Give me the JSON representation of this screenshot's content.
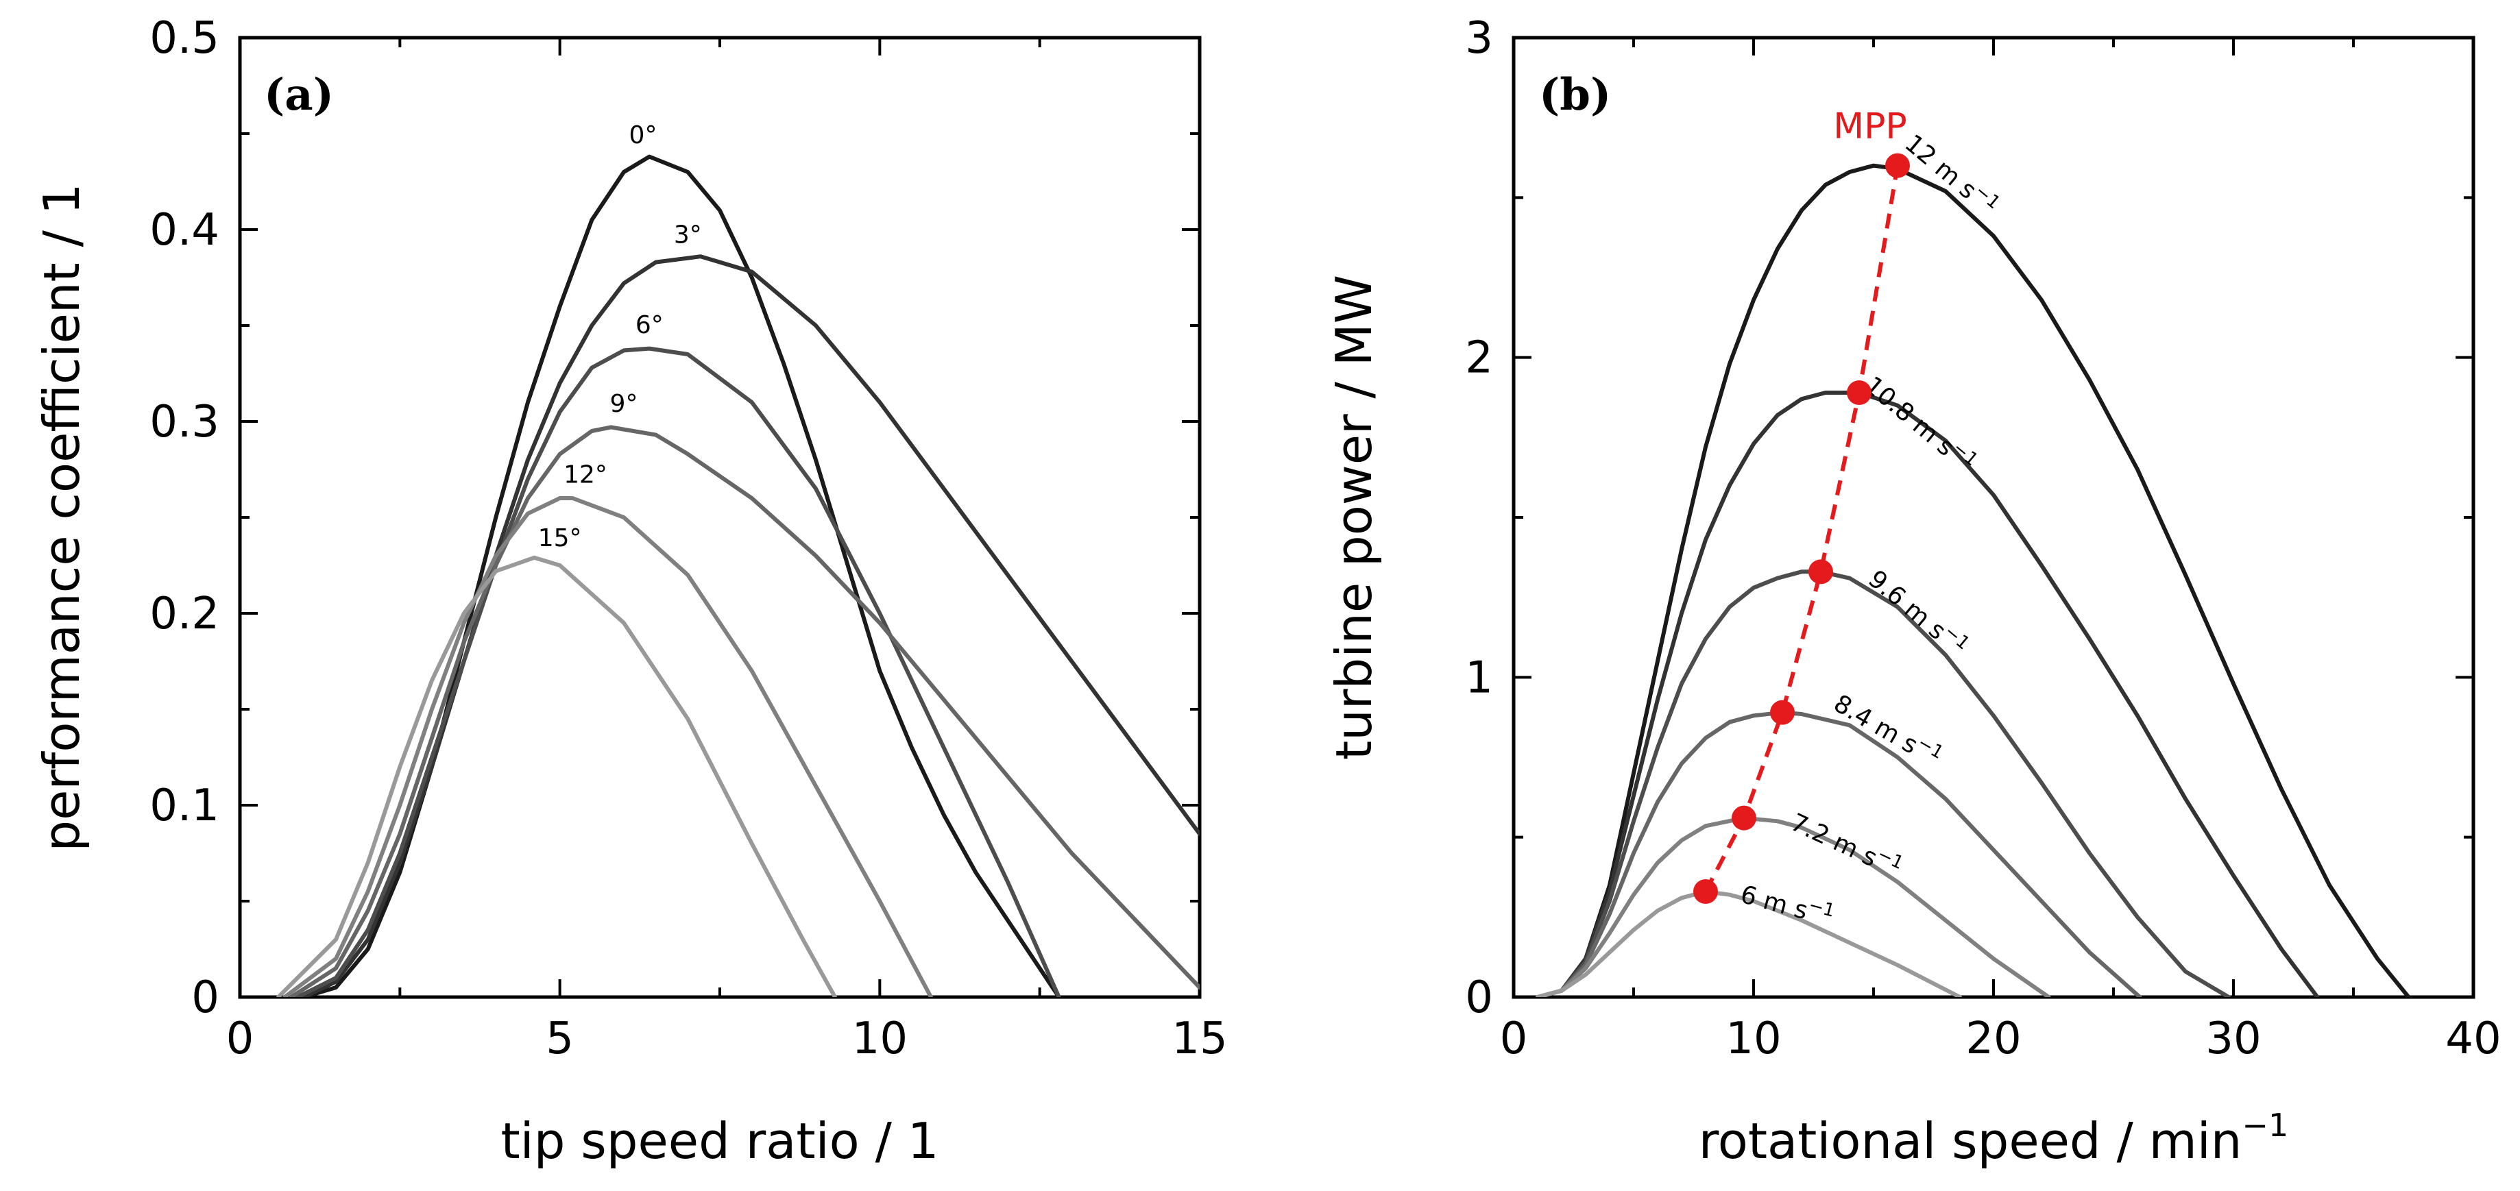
{
  "chart_data": [
    {
      "type": "line",
      "panel": "(a)",
      "xlabel": "tip speed ratio / 1",
      "ylabel": "performance coefficient / 1",
      "xlim": [
        0,
        15
      ],
      "ylim": [
        0,
        0.5
      ],
      "xticks": [
        {
          "value": 0,
          "label": "0"
        },
        {
          "value": 5,
          "label": "5"
        },
        {
          "value": 10,
          "label": "10"
        },
        {
          "value": 15,
          "label": "15"
        }
      ],
      "yticks": [
        {
          "value": 0,
          "label": "0"
        },
        {
          "value": 0.1,
          "label": "0.1"
        },
        {
          "value": 0.2,
          "label": "0.2"
        },
        {
          "value": 0.3,
          "label": "0.3"
        },
        {
          "value": 0.4,
          "label": "0.4"
        },
        {
          "value": 0.5,
          "label": "0.5"
        }
      ],
      "series": [
        {
          "name": "0°",
          "label": "0°",
          "color": "#1a1a1a",
          "x": [
            1.0,
            1.5,
            2.0,
            2.5,
            3.0,
            3.5,
            4.0,
            4.5,
            5.0,
            5.5,
            6.0,
            6.4,
            7.0,
            7.5,
            8.0,
            8.5,
            9.0,
            9.5,
            10.0,
            10.5,
            11.0,
            11.5,
            12.0,
            12.5,
            12.8
          ],
          "y": [
            0.0,
            0.005,
            0.025,
            0.065,
            0.12,
            0.185,
            0.25,
            0.31,
            0.36,
            0.405,
            0.43,
            0.438,
            0.43,
            0.41,
            0.375,
            0.33,
            0.28,
            0.225,
            0.17,
            0.13,
            0.095,
            0.065,
            0.04,
            0.015,
            0.0
          ],
          "label_at": [
            6.3,
            0.445
          ]
        },
        {
          "name": "3°",
          "label": "3°",
          "color": "#333333",
          "x": [
            1.0,
            1.5,
            2.0,
            2.5,
            3.0,
            3.5,
            4.0,
            4.5,
            5.0,
            5.5,
            6.0,
            6.5,
            7.2,
            8.0,
            9.0,
            10.0,
            11.0,
            12.0,
            13.0,
            14.0,
            15.0
          ],
          "y": [
            0.0,
            0.008,
            0.03,
            0.07,
            0.12,
            0.175,
            0.23,
            0.28,
            0.32,
            0.35,
            0.372,
            0.383,
            0.386,
            0.378,
            0.35,
            0.31,
            0.265,
            0.22,
            0.175,
            0.13,
            0.085
          ],
          "label_at": [
            7.0,
            0.393
          ]
        },
        {
          "name": "6°",
          "label": "6°",
          "color": "#4d4d4d",
          "x": [
            0.9,
            1.5,
            2.0,
            2.5,
            3.0,
            3.5,
            4.0,
            4.5,
            5.0,
            5.5,
            6.0,
            6.4,
            7.0,
            8.0,
            9.0,
            10.0,
            11.0,
            12.0,
            12.8
          ],
          "y": [
            0.0,
            0.01,
            0.035,
            0.075,
            0.125,
            0.175,
            0.225,
            0.27,
            0.305,
            0.328,
            0.337,
            0.338,
            0.335,
            0.31,
            0.265,
            0.2,
            0.13,
            0.06,
            0.0
          ],
          "label_at": [
            6.4,
            0.346
          ]
        },
        {
          "name": "9°",
          "label": "9°",
          "color": "#666666",
          "x": [
            0.8,
            1.5,
            2.0,
            2.5,
            3.0,
            3.5,
            4.0,
            4.5,
            5.0,
            5.5,
            5.8,
            6.5,
            7.0,
            8.0,
            9.0,
            10.0,
            11.0,
            12.0,
            13.0,
            14.0,
            15.0
          ],
          "y": [
            0.0,
            0.015,
            0.045,
            0.085,
            0.135,
            0.185,
            0.225,
            0.26,
            0.283,
            0.295,
            0.297,
            0.293,
            0.283,
            0.26,
            0.23,
            0.195,
            0.155,
            0.115,
            0.075,
            0.04,
            0.005
          ],
          "label_at": [
            6.0,
            0.305
          ]
        },
        {
          "name": "12°",
          "label": "12°",
          "color": "#808080",
          "x": [
            0.7,
            1.5,
            2.0,
            2.5,
            3.0,
            3.5,
            4.0,
            4.5,
            5.0,
            5.2,
            6.0,
            7.0,
            8.0,
            9.0,
            10.0,
            10.8
          ],
          "y": [
            0.0,
            0.02,
            0.055,
            0.1,
            0.15,
            0.195,
            0.23,
            0.252,
            0.26,
            0.26,
            0.25,
            0.22,
            0.17,
            0.11,
            0.05,
            0.0
          ],
          "label_at": [
            5.4,
            0.268
          ]
        },
        {
          "name": "15°",
          "label": "15°",
          "color": "#999999",
          "x": [
            0.6,
            1.5,
            2.0,
            2.5,
            3.0,
            3.5,
            4.0,
            4.6,
            5.0,
            6.0,
            7.0,
            8.0,
            8.8,
            9.3
          ],
          "y": [
            0.0,
            0.03,
            0.07,
            0.12,
            0.165,
            0.2,
            0.222,
            0.229,
            0.225,
            0.195,
            0.145,
            0.08,
            0.03,
            0.0
          ],
          "label_at": [
            5.0,
            0.235
          ]
        }
      ]
    },
    {
      "type": "line",
      "panel": "(b)",
      "xlabel": "rotational speed / min",
      "xlabel_sup": "−1",
      "ylabel": "turbine power / MW",
      "xlim": [
        0,
        40
      ],
      "ylim": [
        0,
        3
      ],
      "xticks": [
        {
          "value": 0,
          "label": "0"
        },
        {
          "value": 10,
          "label": "10"
        },
        {
          "value": 20,
          "label": "20"
        },
        {
          "value": 30,
          "label": "30"
        },
        {
          "value": 40,
          "label": "40"
        }
      ],
      "yticks": [
        {
          "value": 0,
          "label": "0"
        },
        {
          "value": 1,
          "label": "1"
        },
        {
          "value": 2,
          "label": "2"
        },
        {
          "value": 3,
          "label": "3"
        }
      ],
      "series": [
        {
          "name": "12 m s−1",
          "label": "12 m s",
          "label_sup": "−1",
          "color": "#1a1a1a",
          "x": [
            1.0,
            2.0,
            3.0,
            4.0,
            5.0,
            6.0,
            7.0,
            8.0,
            9.0,
            10.0,
            11.0,
            12.0,
            13.0,
            14.0,
            15.0,
            16.0,
            18.0,
            20.0,
            22.0,
            24.0,
            26.0,
            28.0,
            30.0,
            32.0,
            34.0,
            36.0,
            37.3
          ],
          "y": [
            0.0,
            0.02,
            0.12,
            0.35,
            0.7,
            1.05,
            1.4,
            1.72,
            1.98,
            2.18,
            2.34,
            2.46,
            2.54,
            2.58,
            2.6,
            2.59,
            2.52,
            2.38,
            2.18,
            1.93,
            1.65,
            1.32,
            0.98,
            0.65,
            0.35,
            0.12,
            0.0
          ],
          "label_at": [
            18.0,
            2.55
          ],
          "label_angle": 40
        },
        {
          "name": "10.8 m s−1",
          "label": "10.8 m s",
          "label_sup": "−1",
          "color": "#333333",
          "x": [
            1.0,
            2.0,
            3.0,
            4.0,
            5.0,
            6.0,
            7.0,
            8.0,
            9.0,
            10.0,
            11.0,
            12.0,
            13.0,
            14.4,
            16.0,
            18.0,
            20.0,
            22.0,
            24.0,
            26.0,
            28.0,
            30.0,
            32.0,
            33.5
          ],
          "y": [
            0.0,
            0.02,
            0.12,
            0.33,
            0.63,
            0.93,
            1.2,
            1.43,
            1.6,
            1.73,
            1.82,
            1.87,
            1.89,
            1.89,
            1.85,
            1.74,
            1.57,
            1.35,
            1.12,
            0.88,
            0.62,
            0.38,
            0.15,
            0.0
          ],
          "label_at": [
            16.7,
            1.77
          ],
          "label_angle": 40
        },
        {
          "name": "9.6 m s−1",
          "label": "9.6 m s",
          "label_sup": "−1",
          "color": "#4d4d4d",
          "x": [
            1.0,
            2.0,
            3.0,
            4.0,
            5.0,
            6.0,
            7.0,
            8.0,
            9.0,
            10.0,
            11.0,
            12.0,
            12.8,
            14.0,
            16.0,
            18.0,
            20.0,
            22.0,
            24.0,
            26.0,
            28.0,
            29.8
          ],
          "y": [
            0.0,
            0.02,
            0.11,
            0.3,
            0.55,
            0.78,
            0.98,
            1.12,
            1.22,
            1.28,
            1.31,
            1.33,
            1.33,
            1.31,
            1.22,
            1.07,
            0.88,
            0.67,
            0.45,
            0.25,
            0.08,
            0.0
          ],
          "label_at": [
            16.6,
            1.18
          ],
          "label_angle": 40
        },
        {
          "name": "8.4 m s−1",
          "label": "8.4 m s",
          "label_sup": "−1",
          "color": "#666666",
          "x": [
            1.0,
            2.0,
            3.0,
            4.0,
            5.0,
            6.0,
            7.0,
            8.0,
            9.0,
            10.0,
            11.2,
            12.0,
            14.0,
            16.0,
            18.0,
            20.0,
            22.0,
            24.0,
            26.1
          ],
          "y": [
            0.0,
            0.02,
            0.1,
            0.26,
            0.45,
            0.61,
            0.73,
            0.81,
            0.86,
            0.88,
            0.89,
            0.885,
            0.85,
            0.75,
            0.62,
            0.46,
            0.3,
            0.14,
            0.0
          ],
          "label_at": [
            15.4,
            0.81
          ],
          "label_angle": 30
        },
        {
          "name": "7.2 m s−1",
          "label": "7.2 m s",
          "label_sup": "−1",
          "color": "#808080",
          "x": [
            1.0,
            2.0,
            3.0,
            4.0,
            5.0,
            6.0,
            7.0,
            8.0,
            9.6,
            11.0,
            12.0,
            14.0,
            16.0,
            18.0,
            20.0,
            22.3
          ],
          "y": [
            0.0,
            0.02,
            0.09,
            0.2,
            0.32,
            0.42,
            0.49,
            0.535,
            0.56,
            0.55,
            0.53,
            0.46,
            0.36,
            0.24,
            0.12,
            0.0
          ],
          "label_at": [
            13.7,
            0.45
          ],
          "label_angle": 25
        },
        {
          "name": "6 m s−1",
          "label": "6 m s",
          "label_sup": "−1",
          "color": "#999999",
          "x": [
            1.0,
            2.0,
            3.0,
            4.0,
            5.0,
            6.0,
            7.0,
            8.0,
            9.0,
            10.0,
            12.0,
            14.0,
            16.0,
            18.6
          ],
          "y": [
            0.0,
            0.02,
            0.07,
            0.14,
            0.21,
            0.27,
            0.31,
            0.33,
            0.32,
            0.3,
            0.24,
            0.17,
            0.1,
            0.0
          ],
          "label_at": [
            11.3,
            0.26
          ],
          "label_angle": 15
        }
      ],
      "mpp": {
        "label": "MPP",
        "color": "#e41a1c",
        "points": [
          {
            "x": 8.0,
            "y": 0.33
          },
          {
            "x": 9.6,
            "y": 0.56
          },
          {
            "x": 11.2,
            "y": 0.89
          },
          {
            "x": 12.8,
            "y": 1.33
          },
          {
            "x": 14.4,
            "y": 1.89
          },
          {
            "x": 16.0,
            "y": 2.6
          }
        ]
      }
    }
  ]
}
